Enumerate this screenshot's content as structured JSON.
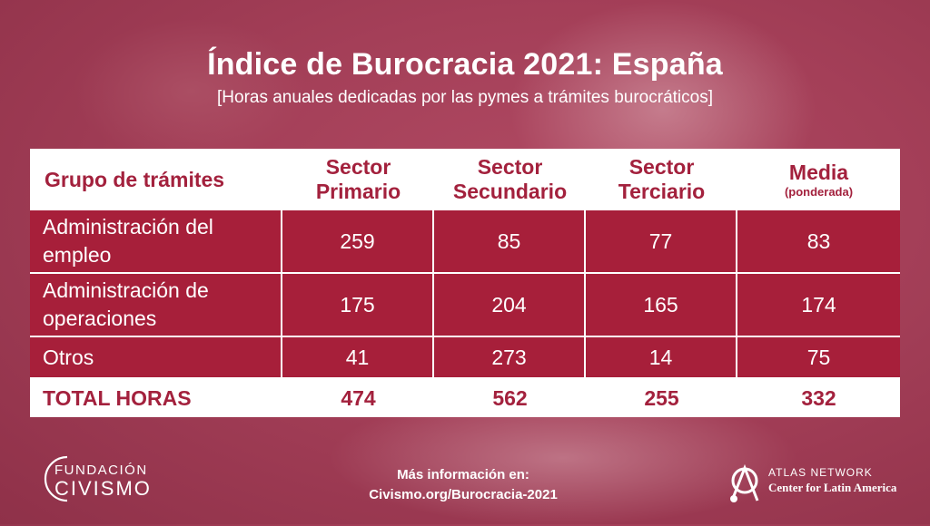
{
  "title": "Índice de Burocracia 2021: España",
  "subtitle": "[Horas anuales dedicadas por las pymes a trámites burocráticos]",
  "chart_data": {
    "type": "table",
    "columns": [
      {
        "label_line1": "Grupo de trámites",
        "label_line2": ""
      },
      {
        "label_line1": "Sector",
        "label_line2": "Primario"
      },
      {
        "label_line1": "Sector",
        "label_line2": "Secundario"
      },
      {
        "label_line1": "Sector",
        "label_line2": "Terciario"
      },
      {
        "label_line1": "Media",
        "label_line2": "(ponderada)"
      }
    ],
    "rows": [
      {
        "label_line1": "Administración del",
        "label_line2": "empleo",
        "values": [
          259,
          85,
          77,
          83
        ]
      },
      {
        "label_line1": "Administración de",
        "label_line2": "operaciones",
        "values": [
          175,
          204,
          165,
          174
        ]
      },
      {
        "label_line1": "Otros",
        "label_line2": "",
        "values": [
          41,
          273,
          14,
          75
        ]
      }
    ],
    "total": {
      "label": "TOTAL HORAS",
      "values": [
        474,
        562,
        255,
        332
      ]
    }
  },
  "footer": {
    "more_info": "Más información en:",
    "url": "Civismo.org/Burocracia-2021"
  },
  "logos": {
    "left_line1": "FUNDACIÓN",
    "left_line2": "CIVISMO",
    "right_line1": "ATLAS NETWORK",
    "right_line2": "Center for Latin America"
  },
  "colors": {
    "accent": "#a71f3a",
    "background": "#a43f58"
  }
}
